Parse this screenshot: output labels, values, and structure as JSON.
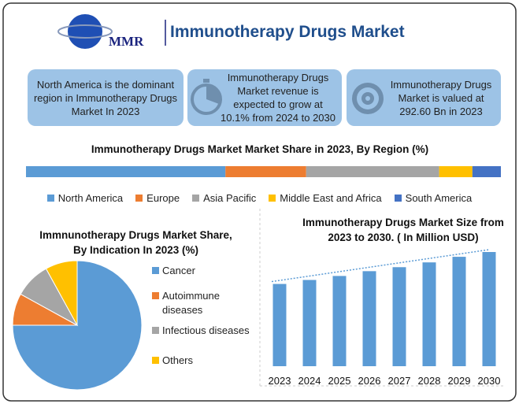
{
  "header": {
    "logo": "MMR",
    "title": "Immunotherapy Drugs Market"
  },
  "info_boxes": [
    "North America is the dominant region in Immunotherapy Drugs Market In 2023",
    "Immunotherapy Drugs Market revenue is expected to grow at 10.1% from 2024 to 2030",
    "Immunotherapy Drugs Market is valued at 292.60 Bn in 2023"
  ],
  "chart_data": [
    {
      "type": "stacked_bar",
      "title": "Immunotherapy Drugs Market Market Share in 2023, By Region (%)",
      "xlim": [
        0,
        100
      ],
      "legend": "bottom",
      "series": [
        {
          "name": "North America",
          "color": "#5b9bd5",
          "values": [
            42
          ]
        },
        {
          "name": "Europe",
          "color": "#ed7d31",
          "values": [
            17
          ]
        },
        {
          "name": "Asia Pacific",
          "color": "#a5a5a5",
          "values": [
            28
          ]
        },
        {
          "name": "Middle East and Africa",
          "color": "#ffc000",
          "values": [
            7
          ]
        },
        {
          "name": "South America",
          "color": "#4472c4",
          "values": [
            6
          ]
        }
      ]
    },
    {
      "type": "pie",
      "title": "Immnunotherapy Drugs Market Share, By Indication  In 2023 (%)",
      "legend": "right",
      "categories": [
        "Cancer",
        "Autoimmune diseases",
        "Infectious diseases",
        "Others"
      ],
      "values": [
        75,
        8,
        9,
        8
      ],
      "colors": [
        "#5b9bd5",
        "#ed7d31",
        "#a5a5a5",
        "#ffc000"
      ]
    },
    {
      "type": "bar",
      "title": "Immunotherapy Drugs Market Size from 2023 to 2030. ( In Million  USD)",
      "categories": [
        "2023",
        "2024",
        "2025",
        "2026",
        "2027",
        "2028",
        "2029",
        "2030"
      ],
      "values": [
        103,
        108,
        113,
        119,
        124,
        130,
        137,
        143
      ],
      "color": "#5b9bd5",
      "trendline": true
    }
  ]
}
